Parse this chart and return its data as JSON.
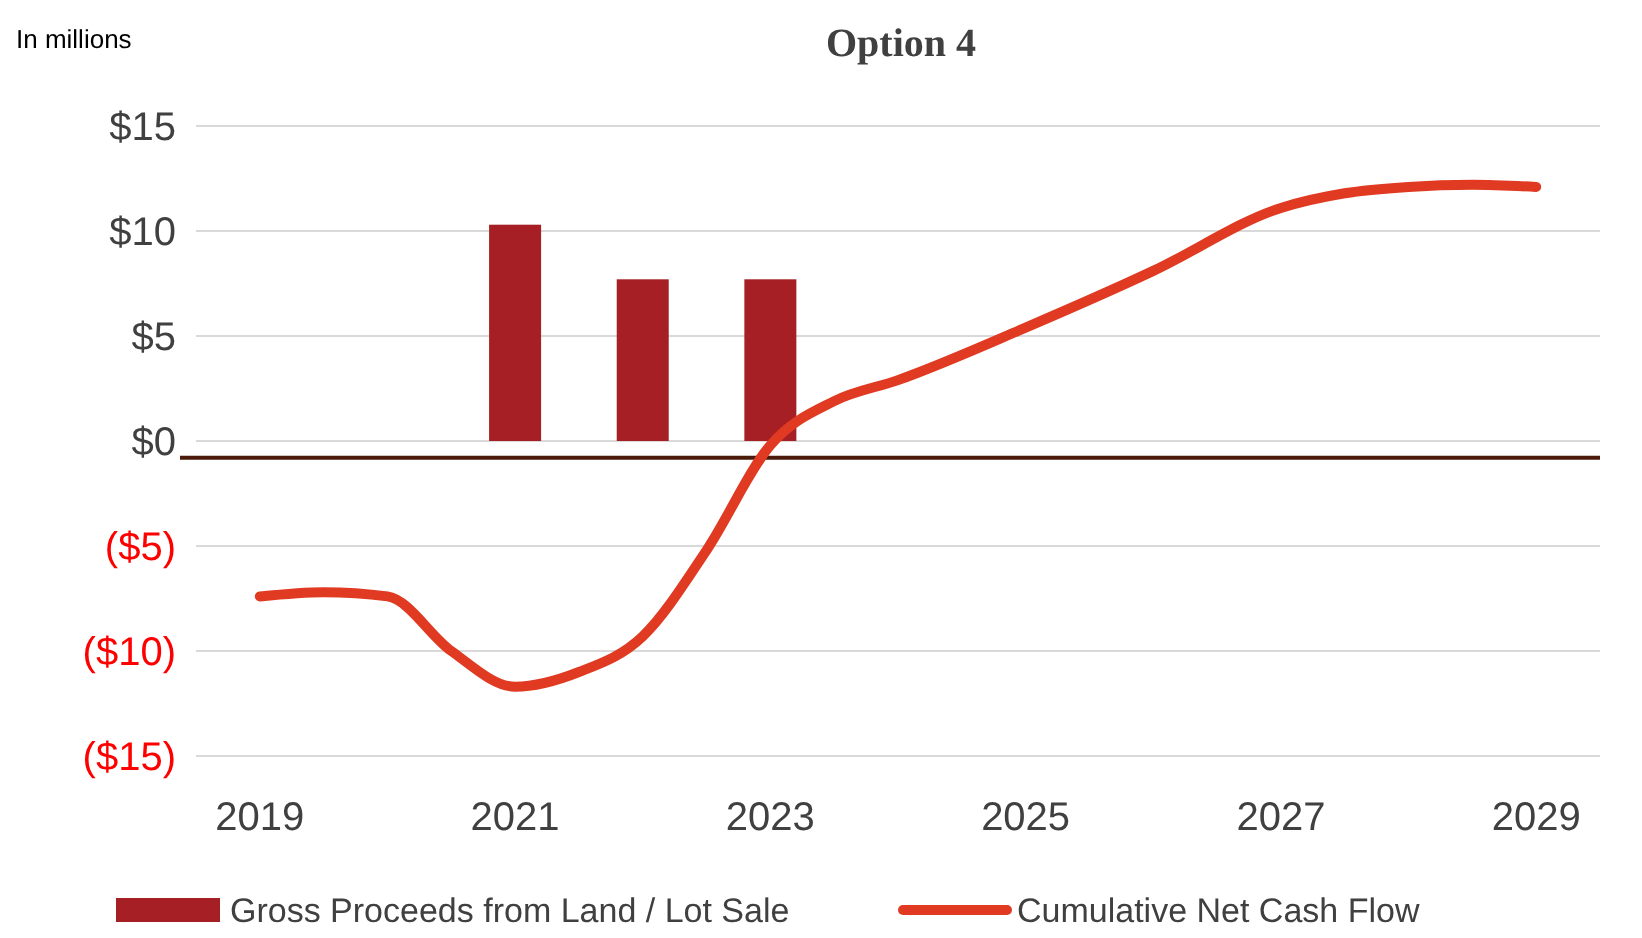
{
  "chart_data": {
    "type": "bar",
    "title": "Option 4",
    "annotations": [
      "In millions"
    ],
    "xlim": [
      2018.5,
      2029.5
    ],
    "xticks": [
      2019,
      2021,
      2023,
      2025,
      2027,
      2029
    ],
    "ylim": [
      -15,
      15
    ],
    "yticks": [
      {
        "value": -15,
        "label": "($15)"
      },
      {
        "value": -10,
        "label": "($10)"
      },
      {
        "value": -5,
        "label": "($5)"
      },
      {
        "value": 0,
        "label": "$0"
      },
      {
        "value": 5,
        "label": "$5"
      },
      {
        "value": 10,
        "label": "$10"
      },
      {
        "value": 15,
        "label": "$15"
      }
    ],
    "grid": "y",
    "legend": "bottom",
    "ref_lines": [
      {
        "axis": "y",
        "value": -0.8,
        "color": "#4a1a0a"
      }
    ],
    "series": [
      {
        "name": "Gross Proceeds from Land / Lot Sale",
        "color": "#a51f24",
        "x": [
          2021,
          2022,
          2023
        ],
        "values": [
          10.3,
          7.7,
          7.7
        ]
      },
      {
        "name": "Cumulative Net Cash Flow",
        "type": "line",
        "color": "#e03a22",
        "x": [
          2019,
          2019.5,
          2020,
          2020.5,
          2021,
          2021.5,
          2022,
          2022.5,
          2023,
          2023.5,
          2024,
          2025,
          2026,
          2027,
          2027.5,
          2028,
          2028.5,
          2029
        ],
        "values": [
          -7.4,
          -7.2,
          -7.4,
          -10,
          -11.7,
          -11,
          -9.3,
          -5.2,
          -0.2,
          1.9,
          2.9,
          5.4,
          8.1,
          11.1,
          11.8,
          12.1,
          12.2,
          12.1
        ]
      }
    ]
  }
}
